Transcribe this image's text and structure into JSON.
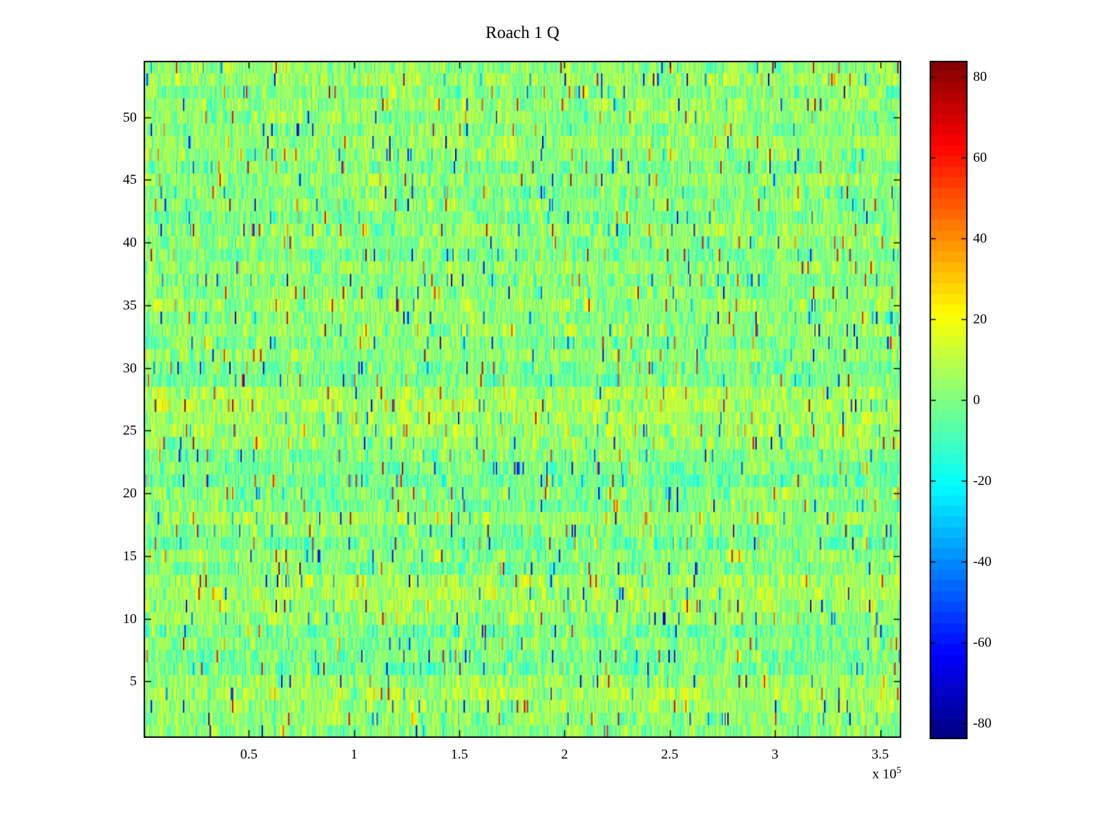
{
  "chart_data": {
    "type": "heatmap",
    "title": "Roach 1 Q",
    "xlabel": "",
    "ylabel": "",
    "background": "#ffffff",
    "x_axis": {
      "min": 0,
      "max": 360000,
      "tick_values": [
        50000,
        100000,
        150000,
        200000,
        250000,
        300000,
        350000
      ],
      "tick_labels": [
        "0.5",
        "1",
        "1.5",
        "2",
        "2.5",
        "3",
        "3.5"
      ],
      "exponent_prefix": "x 10",
      "exponent": "5"
    },
    "y_axis": {
      "min": 0.5,
      "max": 54.5,
      "tick_values": [
        5,
        10,
        15,
        20,
        25,
        30,
        35,
        40,
        45,
        50
      ],
      "tick_labels": [
        "5",
        "10",
        "15",
        "20",
        "25",
        "30",
        "35",
        "40",
        "45",
        "50"
      ]
    },
    "colorbar": {
      "min": -84,
      "max": 84,
      "tick_values": [
        80,
        60,
        40,
        20,
        0,
        -20,
        -40,
        -60,
        -80
      ],
      "tick_labels": [
        "80",
        "60",
        "40",
        "20",
        "0",
        "-20",
        "-40",
        "-60",
        "-80"
      ],
      "colormap": "jet",
      "levels": 64,
      "anchor_colors": [
        "#00008f",
        "#0000ff",
        "#00ffff",
        "#80ff80",
        "#ffff00",
        "#ff0000",
        "#800000"
      ]
    },
    "heatmap": {
      "rows": 54,
      "cols": 540,
      "seed": 42,
      "description": "random noise field, mostly values near 0 (green) with teal/cyan and yellow striations, sparse orange/red and blue outlier columns; some rows warmer (yellow) than others",
      "row_means_bottom_to_top": [
        1,
        2,
        5,
        6,
        4,
        -2,
        -1,
        1,
        -2,
        3,
        5,
        6,
        5,
        0,
        2,
        -3,
        1,
        4,
        -1,
        1,
        -3,
        -2,
        0,
        4,
        6,
        5,
        7,
        6,
        -2,
        -1,
        2,
        0,
        3,
        1,
        4,
        2,
        0,
        3,
        -2,
        1,
        3,
        -1,
        2,
        0,
        3,
        -1,
        2,
        4,
        1,
        2,
        3,
        1,
        4,
        2
      ],
      "noise_std": 9,
      "outliers": {
        "hot_prob": 0.015,
        "hot_min": 30,
        "hot_max": 78,
        "cold_prob": 0.018,
        "cold_min": 28,
        "cold_max": 72
      }
    }
  }
}
